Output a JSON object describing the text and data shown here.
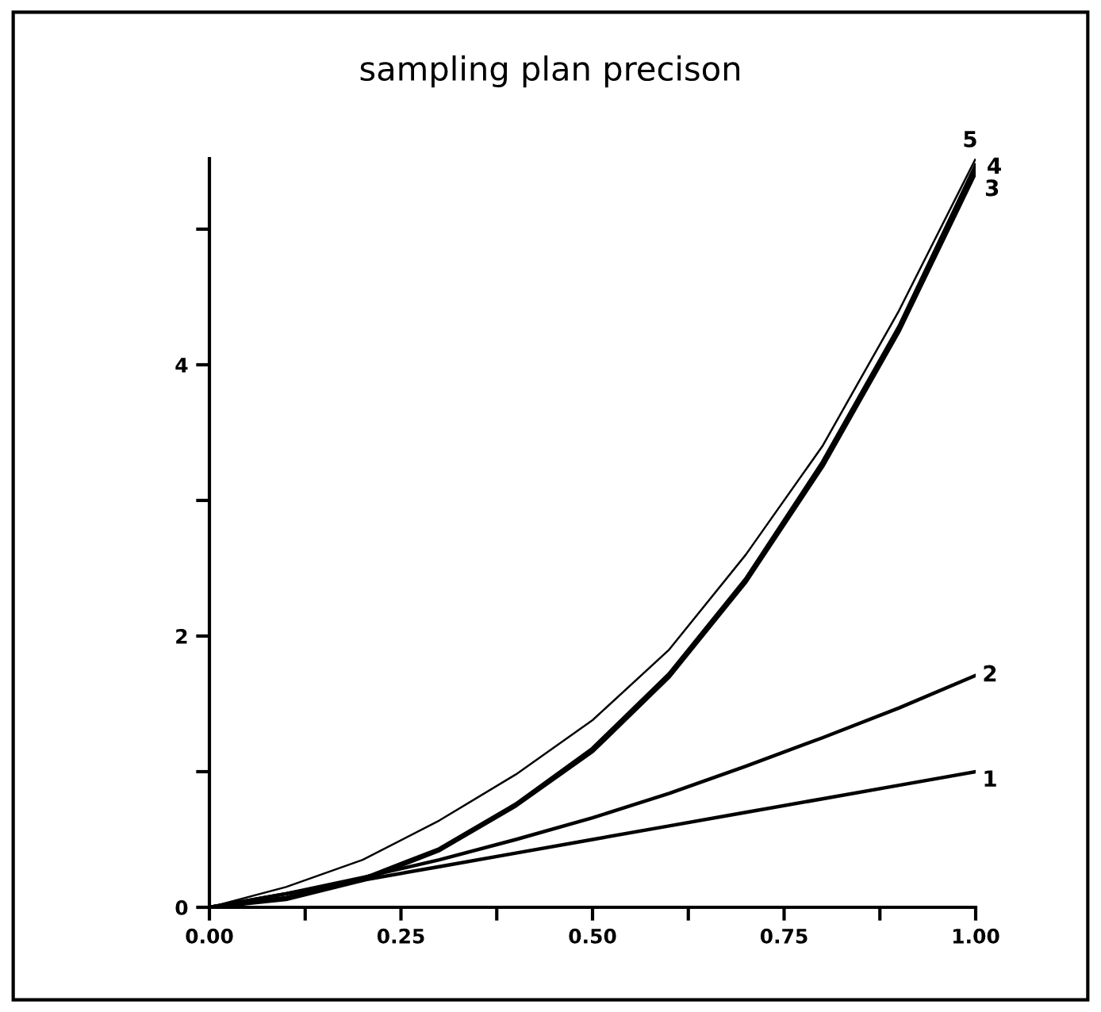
{
  "chart_data": {
    "type": "line",
    "title": "sampling plan precison",
    "xlim": [
      0,
      1
    ],
    "ylim": [
      0,
      5.52
    ],
    "xticks": [
      {
        "value": 0,
        "label": "0.00"
      },
      {
        "value": 0.125,
        "label": null
      },
      {
        "value": 0.25,
        "label": "0.25"
      },
      {
        "value": 0.375,
        "label": null
      },
      {
        "value": 0.5,
        "label": "0.50"
      },
      {
        "value": 0.625,
        "label": null
      },
      {
        "value": 0.75,
        "label": "0.75"
      },
      {
        "value": 0.875,
        "label": null
      },
      {
        "value": 1,
        "label": "1.00"
      }
    ],
    "yticks": [
      0,
      {
        "value": 1,
        "label": null
      },
      2,
      {
        "value": 3,
        "label": null
      },
      4,
      {
        "value": 5,
        "label": null
      }
    ],
    "grid": false,
    "legend": false,
    "marker": "none",
    "line_style": "solid",
    "x": [
      0,
      0.1,
      0.2,
      0.3,
      0.4,
      0.5,
      0.6,
      0.7,
      0.8,
      0.9,
      1.0
    ],
    "series": [
      {
        "name": "1",
        "color": "#000000",
        "values": [
          0,
          0.1,
          0.2,
          0.3,
          0.4,
          0.5,
          0.6,
          0.7,
          0.8,
          0.9,
          1.0
        ]
      },
      {
        "name": "2",
        "color": "#000000",
        "values": [
          0,
          0.1,
          0.22,
          0.35,
          0.5,
          0.66,
          0.84,
          1.04,
          1.25,
          1.47,
          1.71
        ]
      },
      {
        "name": "3",
        "color": "#000000",
        "values": [
          0,
          0.06,
          0.2,
          0.42,
          0.75,
          1.15,
          1.7,
          2.4,
          3.25,
          4.25,
          5.42
        ]
      },
      {
        "name": "4",
        "color": "#000000",
        "values": [
          0,
          0.07,
          0.21,
          0.43,
          0.76,
          1.17,
          1.72,
          2.42,
          3.28,
          4.28,
          5.47
        ]
      },
      {
        "name": "5",
        "color": "#000000",
        "values": [
          0,
          0.15,
          0.35,
          0.64,
          0.98,
          1.38,
          1.9,
          2.6,
          3.4,
          4.4,
          5.52
        ]
      }
    ]
  }
}
